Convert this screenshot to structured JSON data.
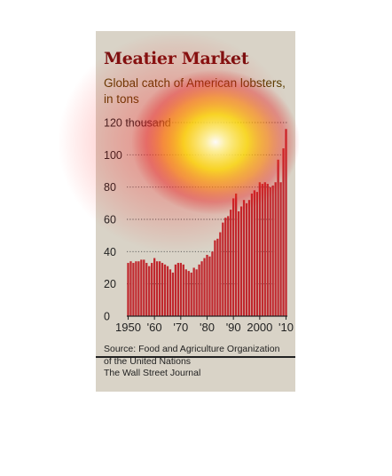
{
  "chart_data": {
    "type": "bar",
    "title": "Meatier Market",
    "subtitle": "Global catch of American lobsters, in tons",
    "ylabel": "",
    "xlabel": "",
    "ylim": [
      0,
      120
    ],
    "ytick_labels": [
      "120 thousand",
      "100",
      "80",
      "60",
      "40",
      "20",
      "0"
    ],
    "xtick_labels": [
      "1950",
      "'60",
      "'70",
      "'80",
      "'90",
      "2000",
      "'10"
    ],
    "grid": true,
    "bar_color": "#c0272d",
    "x": [
      1950,
      1951,
      1952,
      1953,
      1954,
      1955,
      1956,
      1957,
      1958,
      1959,
      1960,
      1961,
      1962,
      1963,
      1964,
      1965,
      1966,
      1967,
      1968,
      1969,
      1970,
      1971,
      1972,
      1973,
      1974,
      1975,
      1976,
      1977,
      1978,
      1979,
      1980,
      1981,
      1982,
      1983,
      1984,
      1985,
      1986,
      1987,
      1988,
      1989,
      1990,
      1991,
      1992,
      1993,
      1994,
      1995,
      1996,
      1997,
      1998,
      1999,
      2000,
      2001,
      2002,
      2003,
      2004,
      2005,
      2006,
      2007,
      2008,
      2009,
      2010
    ],
    "values": [
      33,
      34,
      33,
      34,
      34,
      35,
      35,
      33,
      31,
      33,
      36,
      34,
      34,
      33,
      32,
      31,
      29,
      27,
      32,
      33,
      33,
      32,
      29,
      28,
      27,
      30,
      29,
      32,
      34,
      36,
      38,
      37,
      40,
      47,
      48,
      52,
      58,
      61,
      62,
      66,
      73,
      76,
      65,
      68,
      72,
      70,
      72,
      76,
      78,
      77,
      83,
      82,
      83,
      82,
      80,
      81,
      83,
      97,
      83,
      104,
      116
    ]
  },
  "source": {
    "line1": "Source: Food and Agriculture Organization",
    "line2": "of the United Nations",
    "line3": "The Wall Street Journal"
  }
}
